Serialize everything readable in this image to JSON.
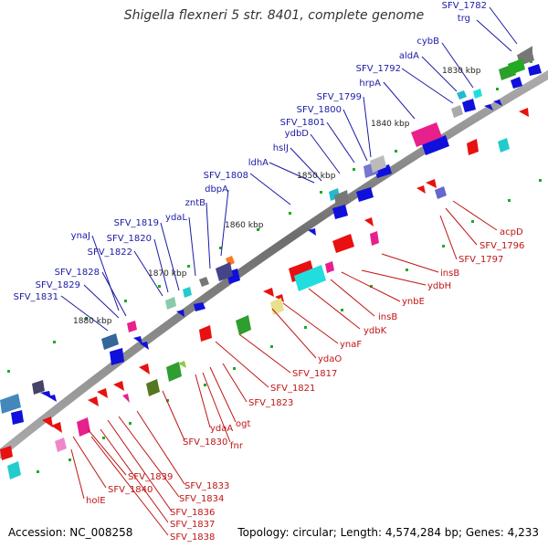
{
  "title": "Shigella flexneri 5 str. 8401, complete genome",
  "footer": {
    "accession": "Accession: NC_008258",
    "summary": "Topology: circular; Length: 4,574,284 bp; Genes: 4,233"
  },
  "colors": {
    "backbone": "#8a8a8a",
    "forward": "#1010dd",
    "reverse": "#e81010",
    "tick": "#22aa22"
  },
  "kbp_ticks": [
    "1830 kbp",
    "1840 kbp",
    "1850 kbp",
    "1860 kbp",
    "1870 kbp",
    "1880 kbp"
  ],
  "blue_labels": [
    "SFV_1782",
    "trg",
    "cybB",
    "aldA",
    "SFV_1792",
    "hrpA",
    "SFV_1799",
    "SFV_1800",
    "SFV_1801",
    "ydbD",
    "hslJ",
    "ldhA",
    "SFV_1808",
    "dbpA",
    "zntB",
    "ydaL",
    "SFV_1819",
    "SFV_1820",
    "SFV_1822",
    "ynaJ",
    "SFV_1828",
    "SFV_1829",
    "SFV_1831"
  ],
  "red_labels": [
    "acpD",
    "SFV_1796",
    "SFV_1797",
    "insB",
    "ydbH",
    "ynbE",
    "insB",
    "ydbK",
    "ynaF",
    "ydaO",
    "SFV_1817",
    "SFV_1821",
    "SFV_1823",
    "ogt",
    "ydaA",
    "fnr",
    "SFV_1830",
    "SFV_1833",
    "SFV_1834",
    "SFV_1836",
    "SFV_1837",
    "SFV_1838",
    "SFV_1839",
    "SFV_1840",
    "holE"
  ]
}
